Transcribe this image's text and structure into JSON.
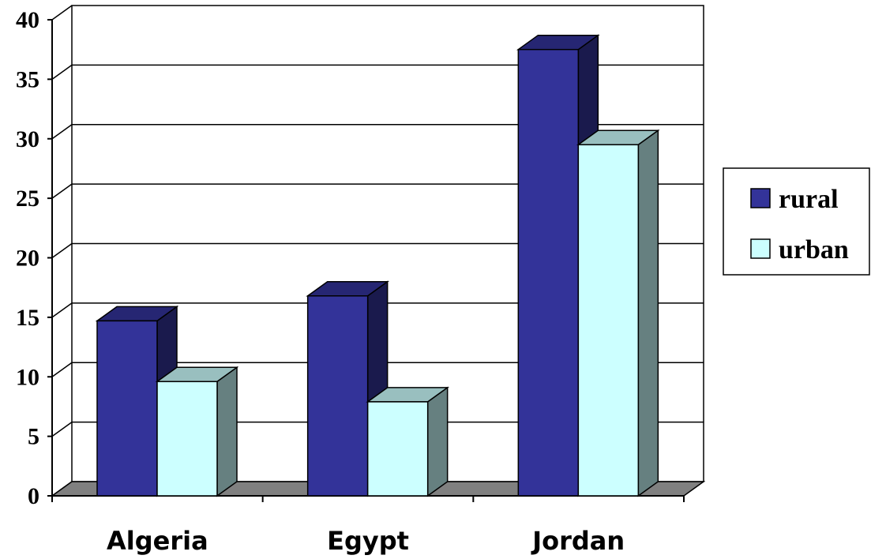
{
  "chart_data": {
    "type": "bar",
    "categories": [
      "Algeria",
      "Egypt",
      "Jordan"
    ],
    "series": [
      {
        "name": "rural",
        "values": [
          14.7,
          16.8,
          37.5
        ],
        "color": "#333399"
      },
      {
        "name": "urban",
        "values": [
          9.6,
          7.9,
          29.5
        ],
        "color": "#ccffff"
      }
    ],
    "yticks": [
      "0",
      "5",
      "10",
      "15",
      "20",
      "25",
      "30",
      "35",
      "40"
    ],
    "ylim": [
      0,
      40
    ],
    "title": "",
    "xlabel": "",
    "ylabel": "",
    "grid": true,
    "legend_position": "right",
    "style": "3d-clustered-column"
  }
}
